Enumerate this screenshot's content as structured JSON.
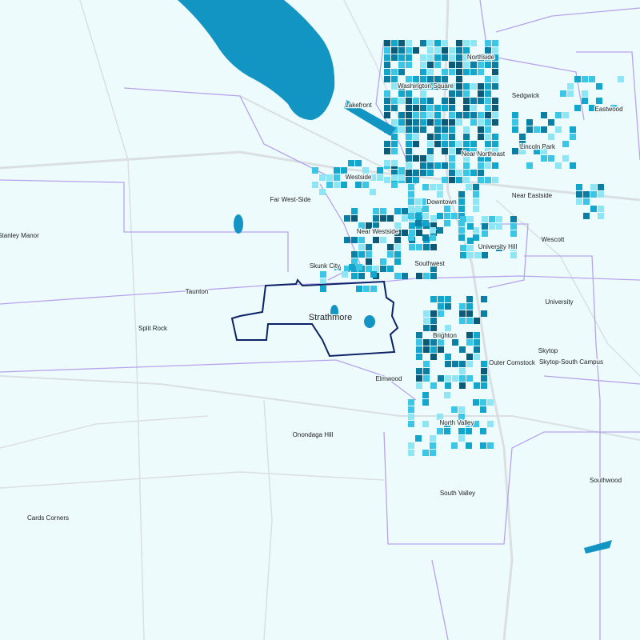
{
  "map": {
    "selected_area": "Strathmore",
    "labels": [
      "Northside",
      "Washington Square",
      "Sedgwick",
      "Eastwood",
      "Lakefront",
      "Near Northeast",
      "Lincoln Park",
      "Westside",
      "Far West-Side",
      "Downtown",
      "Near Eastside",
      "Stanley Manor",
      "Near Westside",
      "University Hill",
      "Wescott",
      "Skunk City",
      "Southwest",
      "Taunton",
      "University",
      "Split Rock",
      "Brighton",
      "Skytop",
      "Outer Comstock",
      "Skytop-South Campus",
      "Elmwood",
      "North Valley",
      "Onondaga Hill",
      "Southwood",
      "South Valley",
      "Cards Corners"
    ]
  }
}
